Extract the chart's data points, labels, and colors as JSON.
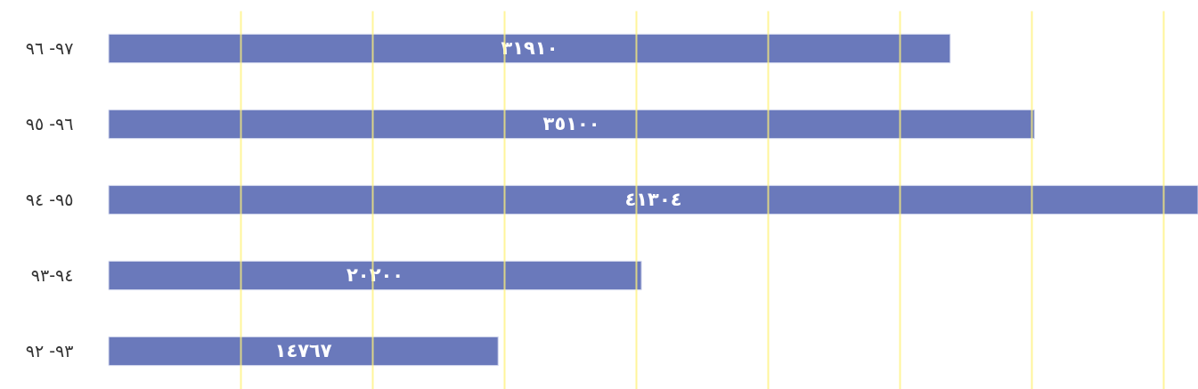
{
  "chart_data": {
    "type": "bar",
    "orientation": "horizontal",
    "categories": [
      "٩٧- ٩٦",
      "٩٦- ٩٥",
      "٩٥- ٩٤",
      "٩٤-٩٣",
      "٩٣- ٩٢"
    ],
    "values": [
      31910,
      35100,
      41304,
      20200,
      14767
    ],
    "value_labels": [
      "٣١٩١٠",
      "٣٥١٠٠",
      "٤١٣٠٤",
      "٢٠٢٠٠",
      "١٤٧٦٧"
    ],
    "color": "#6a79bb",
    "xlim": [
      0,
      41304
    ],
    "xticks": [
      {
        "value": 5000,
        "label": null
      },
      {
        "value": 10000,
        "label": null
      },
      {
        "value": 15000,
        "label": null
      },
      {
        "value": 20000,
        "label": null
      },
      {
        "value": 25000,
        "label": null
      },
      {
        "value": 30000,
        "label": null
      },
      {
        "value": 35000,
        "label": null
      },
      {
        "value": 40000,
        "label": null
      }
    ],
    "grid": "x",
    "tick_labels": "y"
  }
}
